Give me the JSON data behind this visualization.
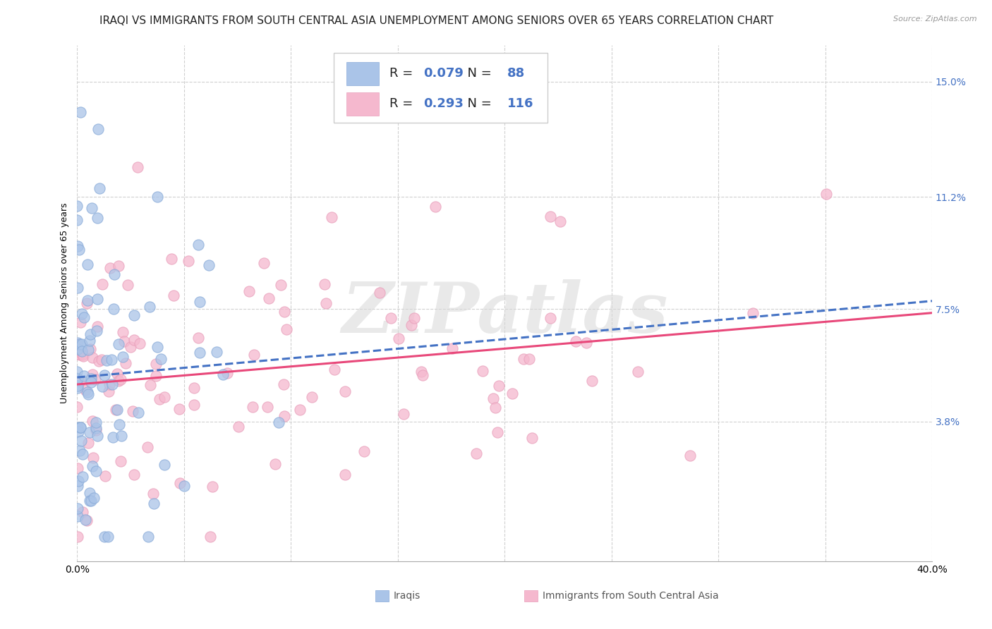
{
  "title": "IRAQI VS IMMIGRANTS FROM SOUTH CENTRAL ASIA UNEMPLOYMENT AMONG SENIORS OVER 65 YEARS CORRELATION CHART",
  "source": "Source: ZipAtlas.com",
  "ylabel": "Unemployment Among Seniors over 65 years",
  "xlim": [
    0.0,
    0.4
  ],
  "ylim": [
    -0.008,
    0.162
  ],
  "yticks": [
    0.038,
    0.075,
    0.112,
    0.15
  ],
  "ytick_labels": [
    "3.8%",
    "7.5%",
    "11.2%",
    "15.0%"
  ],
  "xticks": [
    0.0,
    0.05,
    0.1,
    0.15,
    0.2,
    0.25,
    0.3,
    0.35,
    0.4
  ],
  "xtick_labels": [
    "0.0%",
    "",
    "",
    "",
    "",
    "",
    "",
    "",
    "40.0%"
  ],
  "iraqis_color": "#aac4e8",
  "immigrants_color": "#f5b8ce",
  "iraqis_line_color": "#4472c4",
  "immigrants_line_color": "#e8487a",
  "R_iraqis": 0.079,
  "N_iraqis": 88,
  "R_immigrants": 0.293,
  "N_immigrants": 116,
  "legend_label_iraqis": "Iraqis",
  "legend_label_immigrants": "Immigrants from South Central Asia",
  "background_color": "#ffffff",
  "watermark": "ZIPatlas",
  "title_fontsize": 11,
  "axis_label_fontsize": 9,
  "tick_fontsize": 10,
  "source_fontsize": 8,
  "legend_fontsize": 13
}
